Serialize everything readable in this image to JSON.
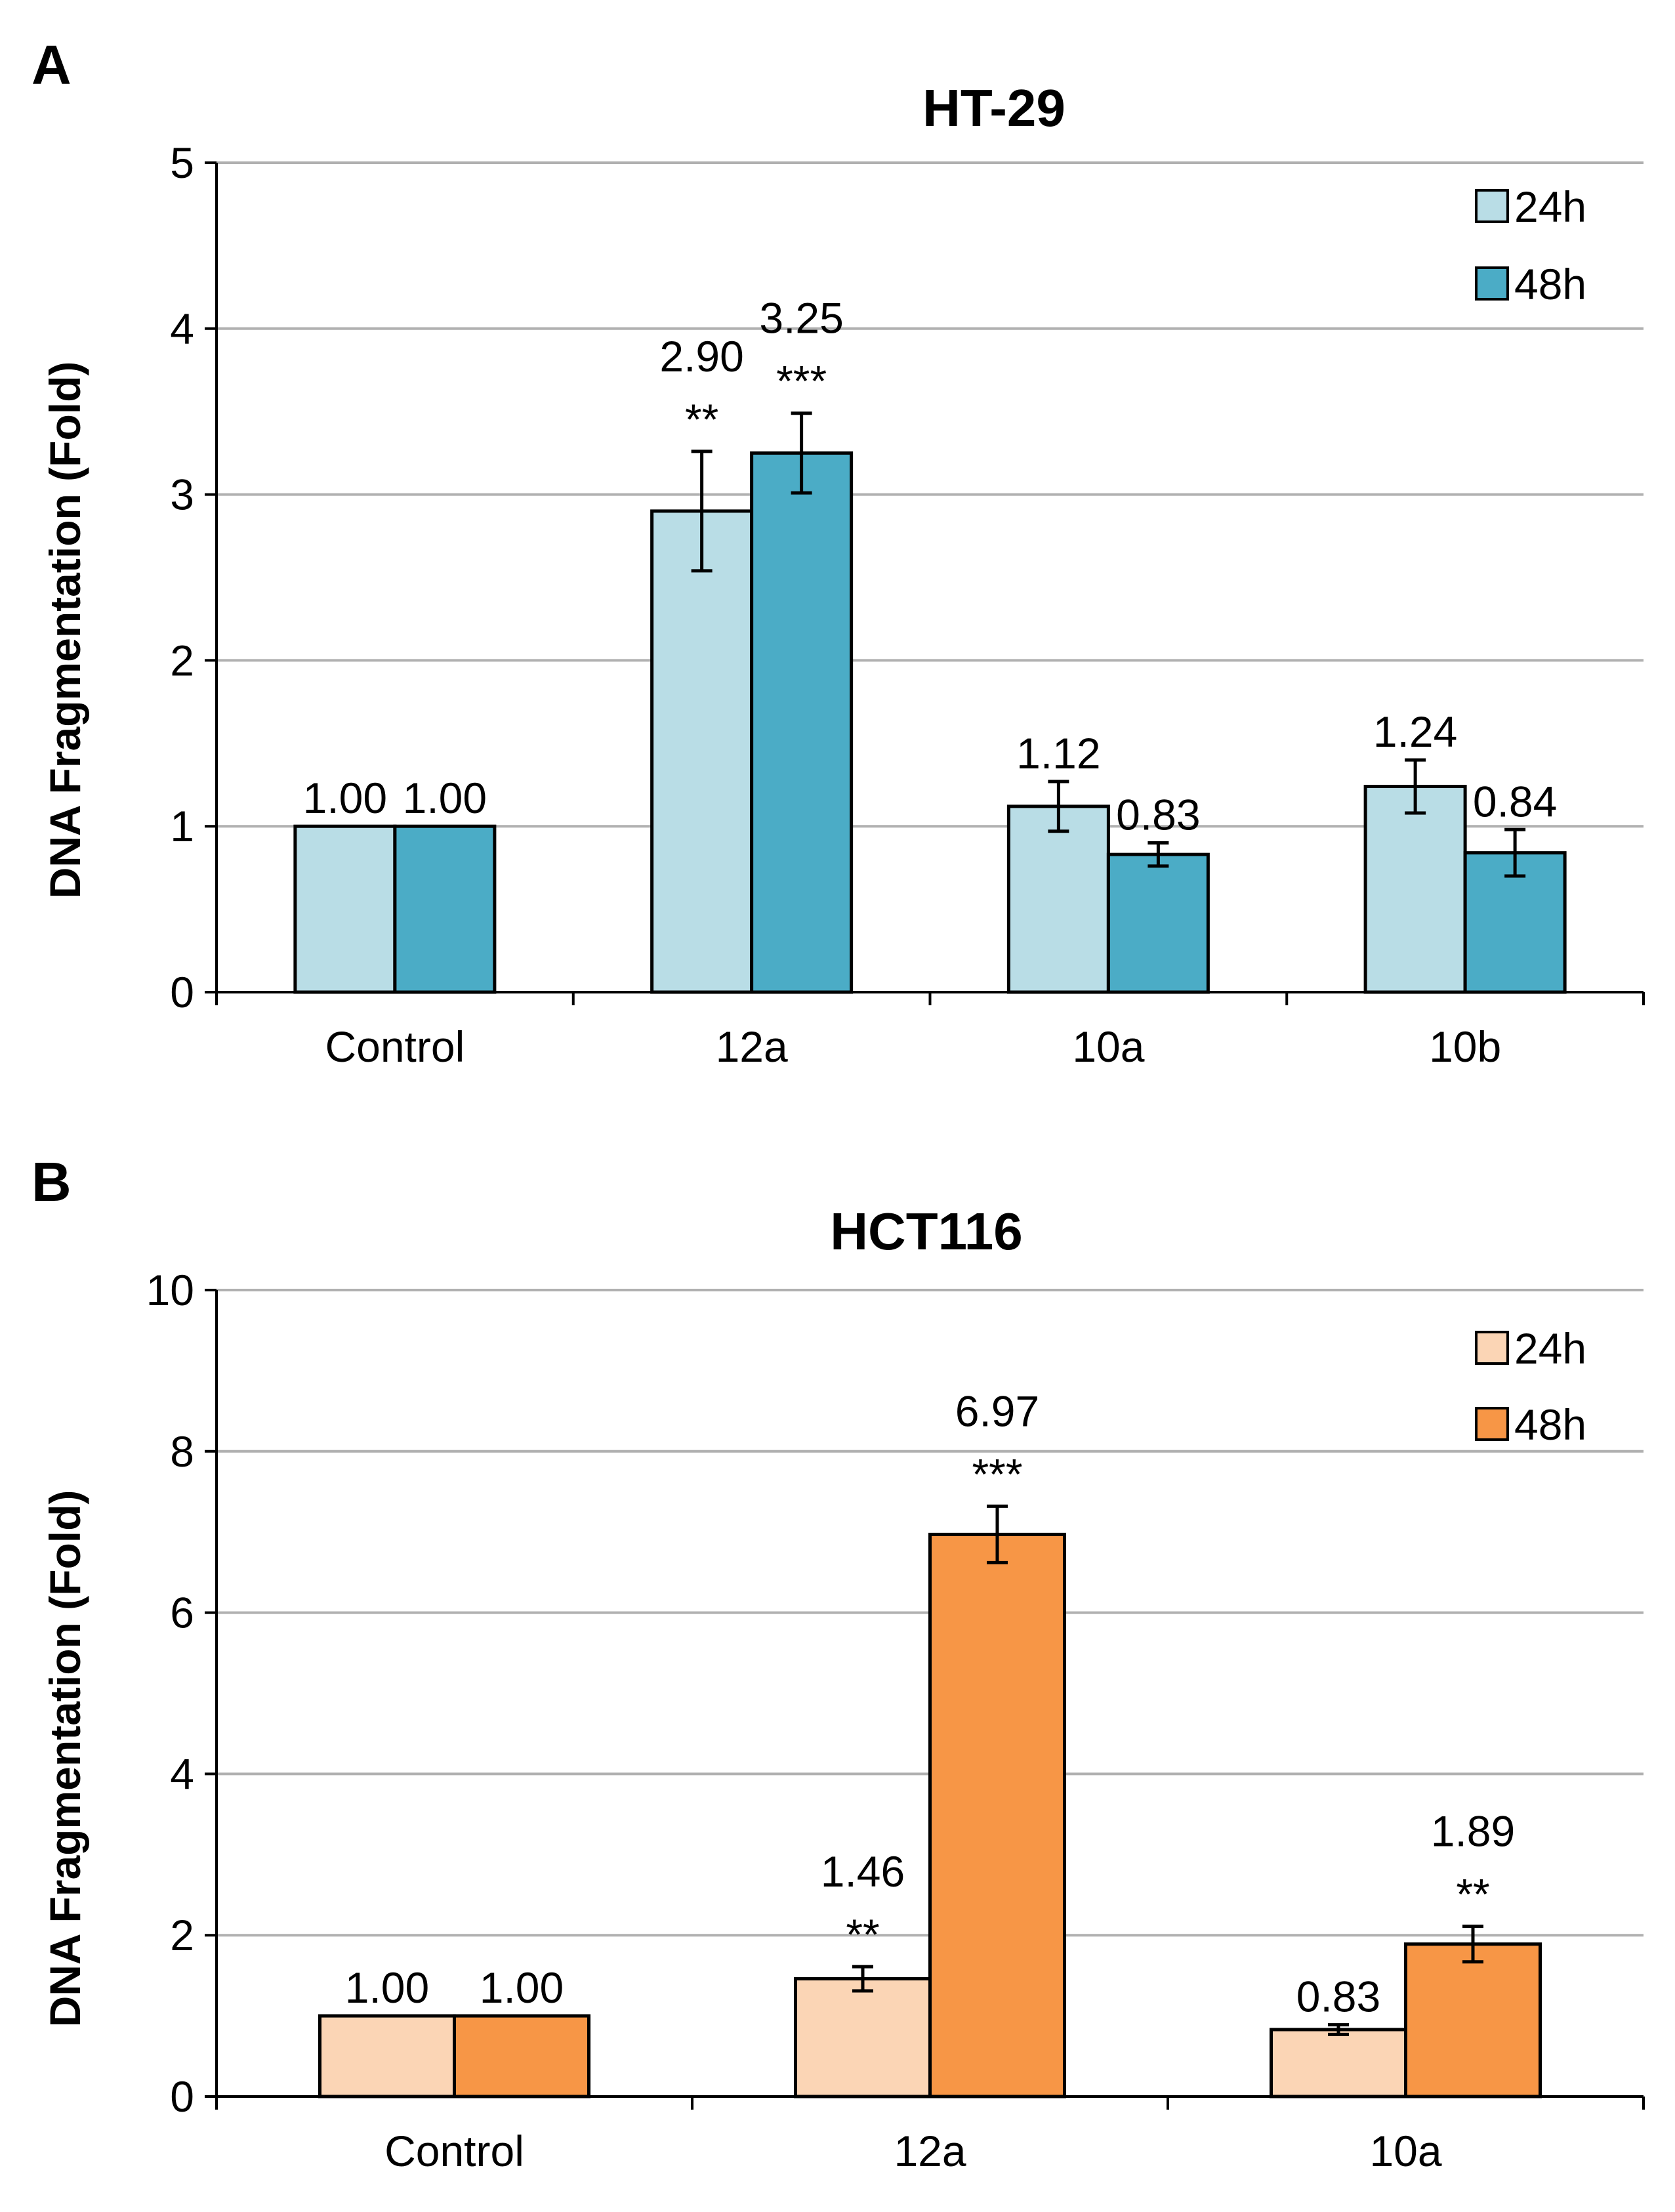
{
  "chart_data": [
    {
      "panel": "A",
      "type": "bar",
      "title": "HT-29",
      "xlabel": "",
      "ylabel": "DNA Fragmentation (Fold)",
      "ylim": [
        0,
        5
      ],
      "yticks": [
        "0",
        "1",
        "2",
        "3",
        "4",
        "5"
      ],
      "categories": [
        "Control",
        "12a",
        "10a",
        "10b"
      ],
      "grid": true,
      "legend_position": "top-right",
      "series": [
        {
          "name": "24h",
          "color": "#b9dde6",
          "values": [
            1.0,
            2.9,
            1.12,
            1.24
          ],
          "errors": [
            0,
            0.36,
            0.15,
            0.16
          ],
          "labels": [
            "1.00",
            "2.90",
            "1.12",
            "1.24"
          ],
          "significance": [
            "",
            "**",
            "",
            ""
          ]
        },
        {
          "name": "48h",
          "color": "#4bacc6",
          "values": [
            1.0,
            3.25,
            0.83,
            0.84
          ],
          "errors": [
            0,
            0.24,
            0.07,
            0.14
          ],
          "labels": [
            "1.00",
            "3.25",
            "0.83",
            "0.84"
          ],
          "significance": [
            "",
            "***",
            "",
            ""
          ]
        }
      ]
    },
    {
      "panel": "B",
      "type": "bar",
      "title": "HCT116",
      "xlabel": "",
      "ylabel": "DNA Fragmentation (Fold)",
      "ylim": [
        0,
        10
      ],
      "yticks": [
        "0",
        "2",
        "4",
        "6",
        "8",
        "10"
      ],
      "categories": [
        "Control",
        "12a",
        "10a"
      ],
      "grid": true,
      "legend_position": "top-right",
      "series": [
        {
          "name": "24h",
          "color": "#fbd5b5",
          "values": [
            1.0,
            1.46,
            0.83
          ],
          "errors": [
            0,
            0.15,
            0.06
          ],
          "labels": [
            "1.00",
            "1.46",
            "0.83"
          ],
          "significance": [
            "",
            "**",
            ""
          ]
        },
        {
          "name": "48h",
          "color": "#f79646",
          "values": [
            1.0,
            6.97,
            1.89
          ],
          "errors": [
            0,
            0.35,
            0.22
          ],
          "labels": [
            "1.00",
            "6.97",
            "1.89"
          ],
          "significance": [
            "",
            "***",
            "**"
          ]
        }
      ]
    }
  ]
}
